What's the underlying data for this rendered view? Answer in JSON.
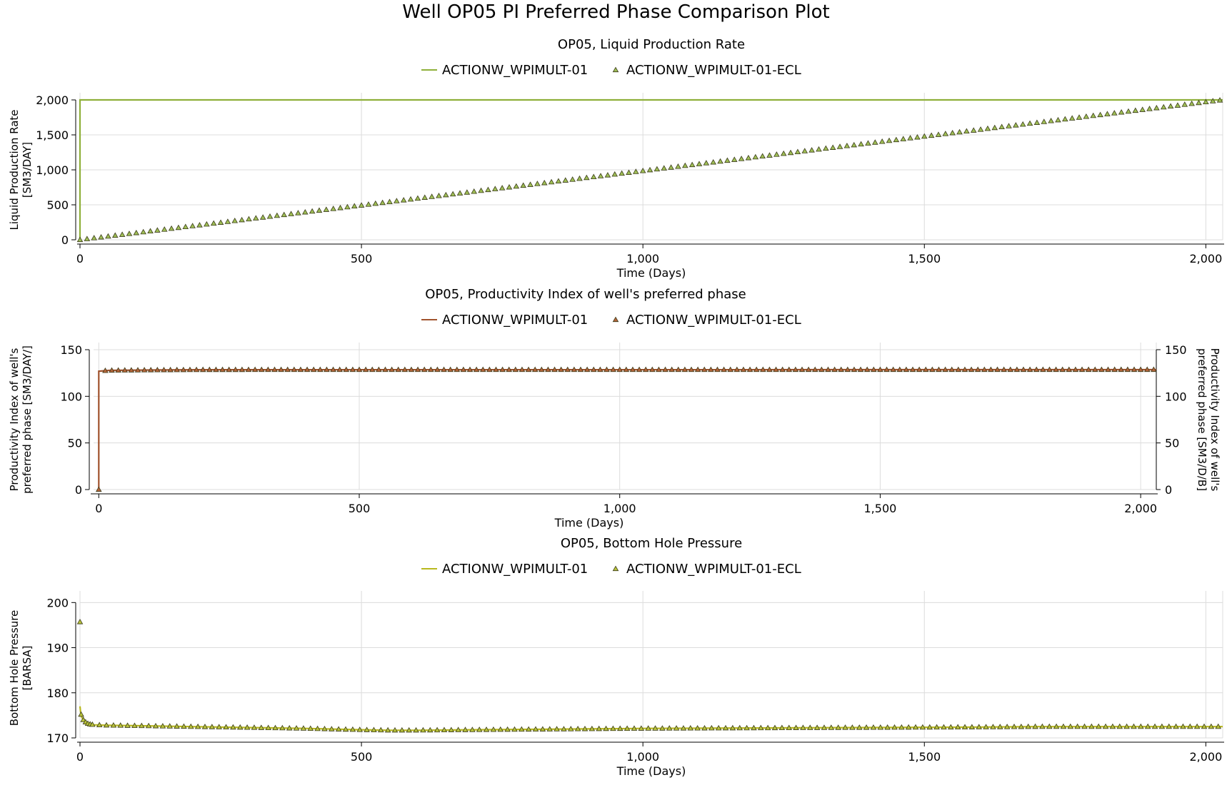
{
  "title": "Well OP05 PI Preferred Phase Comparison Plot",
  "chart_data": [
    {
      "type": "line",
      "title": "OP05, Liquid Production Rate",
      "xlabel": "Time (Days)",
      "ylabel": [
        "Liquid Production Rate",
        "[SM3/DAY]"
      ],
      "y2label": [],
      "xlim": [
        0,
        2030
      ],
      "ylim": [
        0,
        2000
      ],
      "xticks": [
        0,
        500,
        1000,
        1500,
        2000
      ],
      "xtick_labels": [
        "0",
        "500",
        "1,000",
        "1,500",
        "2,000"
      ],
      "yticks": [
        0,
        500,
        1000,
        1500,
        2000
      ],
      "ytick_labels": [
        "0",
        "500",
        "1,000",
        "1,500",
        "2,000"
      ],
      "grid": true,
      "legend_position": "top-center",
      "color": "#8fb03a",
      "marker_fill": "#9fbf55",
      "series": [
        {
          "name": "ACTIONW_WPIMULT-01",
          "style": "line",
          "x": [
            0,
            0.01,
            2030
          ],
          "y": [
            0,
            2000,
            2000
          ]
        },
        {
          "name": "ACTIONW_WPIMULT-01-ECL",
          "style": "triangle-markers",
          "x": [
            0,
            2030
          ],
          "y": [
            0,
            2000
          ],
          "first_point": [
            0,
            0
          ],
          "step": 12.5
        }
      ]
    },
    {
      "type": "line",
      "title": "OP05, Productivity Index of well's preferred phase",
      "xlabel": "Time (Days)",
      "ylabel": [
        "Productivity Index of well's",
        "preferred phase [SM3/DAY/]"
      ],
      "y2label": [
        "Productivity Index of well's",
        "preferred phase [SM3/D/B]"
      ],
      "xlim": [
        -10,
        2030
      ],
      "ylim": [
        0,
        150
      ],
      "xticks": [
        0,
        500,
        1000,
        1500,
        2000
      ],
      "xtick_labels": [
        "0",
        "500",
        "1,000",
        "1,500",
        "2,000"
      ],
      "yticks": [
        0,
        50,
        100,
        150
      ],
      "ytick_labels": [
        "0",
        "50",
        "100",
        "150"
      ],
      "grid": true,
      "legend_position": "top-center",
      "color": "#a0522d",
      "marker_fill": "#b5653a",
      "series": [
        {
          "name": "ACTIONW_WPIMULT-01",
          "style": "line",
          "x": [
            0,
            0.01,
            20,
            100,
            200,
            2030
          ],
          "y": [
            0,
            127,
            127.8,
            128.2,
            128.5,
            128.6
          ]
        },
        {
          "name": "ACTIONW_WPIMULT-01-ECL",
          "style": "triangle-markers",
          "x": [
            0,
            20,
            100,
            200,
            2030
          ],
          "y": [
            127,
            127.8,
            128.2,
            128.5,
            128.6
          ],
          "first_point": [
            0,
            0
          ],
          "step": 12.5
        }
      ]
    },
    {
      "type": "line",
      "title": "OP05, Bottom Hole Pressure",
      "xlabel": "Time (Days)",
      "ylabel": [
        "Bottom Hole Pressure",
        "[BARSA]"
      ],
      "y2label": [],
      "xlim": [
        0,
        2030
      ],
      "ylim": [
        170,
        201
      ],
      "xticks": [
        0,
        500,
        1000,
        1500,
        2000
      ],
      "xtick_labels": [
        "0",
        "500",
        "1,000",
        "1,500",
        "2,000"
      ],
      "yticks": [
        170,
        180,
        190,
        200
      ],
      "ytick_labels": [
        "170",
        "180",
        "190",
        "200"
      ],
      "grid": true,
      "legend_position": "top-center",
      "color": "#b8b81e",
      "marker_fill": "#b8c23a",
      "series": [
        {
          "name": "ACTIONW_WPIMULT-01",
          "style": "line",
          "x": [
            0.01,
            1,
            3,
            6,
            10,
            15,
            25,
            50,
            100,
            200,
            300,
            400,
            500,
            550,
            600,
            700,
            800,
            900,
            1000,
            1200,
            1400,
            1600,
            1700,
            1800,
            1900,
            2030
          ],
          "y": [
            177,
            175.8,
            174.6,
            174,
            173.5,
            173.1,
            172.9,
            172.8,
            172.7,
            172.5,
            172.3,
            172.1,
            171.8,
            171.7,
            171.7,
            171.8,
            171.9,
            172.0,
            172.1,
            172.2,
            172.3,
            172.4,
            172.5,
            172.5,
            172.5,
            172.5
          ]
        },
        {
          "name": "ACTIONW_WPIMULT-01-ECL",
          "style": "triangle-markers",
          "x": [
            0.01,
            1,
            3,
            6,
            10,
            15,
            25,
            50,
            100,
            200,
            300,
            400,
            500,
            550,
            600,
            700,
            800,
            900,
            1000,
            1200,
            1400,
            1600,
            1700,
            1800,
            1900,
            2030
          ],
          "y": [
            177,
            175.8,
            174.6,
            174,
            173.5,
            173.1,
            172.9,
            172.8,
            172.7,
            172.5,
            172.3,
            172.1,
            171.8,
            171.7,
            171.7,
            171.8,
            171.9,
            172.0,
            172.1,
            172.2,
            172.3,
            172.4,
            172.5,
            172.5,
            172.5,
            172.5
          ],
          "first_point": [
            0,
            195.7
          ],
          "step": 12.5
        }
      ]
    }
  ]
}
